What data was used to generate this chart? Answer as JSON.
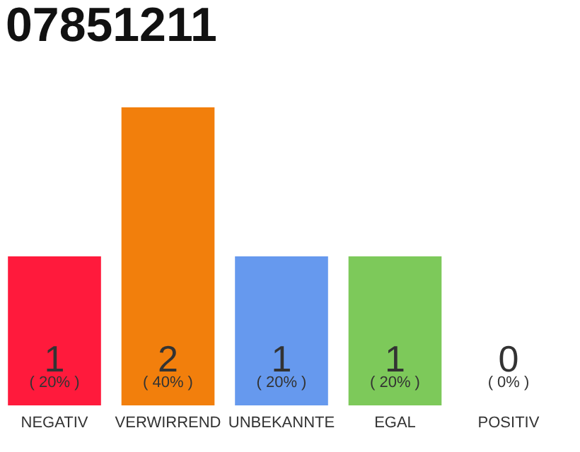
{
  "chart_data": {
    "type": "bar",
    "title": "07851211",
    "categories": [
      "NEGATIV",
      "VERWIRREND",
      "UNBEKANNTE",
      "EGAL",
      "POSITIV"
    ],
    "values": [
      1,
      2,
      1,
      1,
      0
    ],
    "colors": [
      "#ff1a3c",
      "#f27f0c",
      "#6699ee",
      "#7dc95a",
      "#cccccc"
    ],
    "data_labels": true,
    "annotations": [
      {
        "text": "( 20% )",
        "x": "NEGATIV",
        "y": 0
      },
      {
        "text": "( 40% )",
        "x": "VERWIRREND",
        "y": 0
      },
      {
        "text": "( 20% )",
        "x": "UNBEKANNTE",
        "y": 0
      },
      {
        "text": "( 20% )",
        "x": "EGAL",
        "y": 0
      },
      {
        "text": "( 0% )",
        "x": "POSITIV",
        "y": 0
      }
    ],
    "grid": false
  }
}
